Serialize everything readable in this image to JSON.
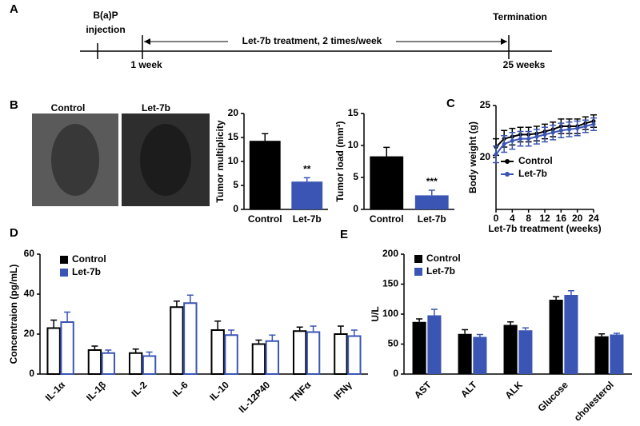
{
  "panel_labels": [
    "A",
    "B",
    "C",
    "D",
    "E"
  ],
  "timeline": {
    "injection": [
      "B(a)P",
      "injection"
    ],
    "treatment": "Let-7b treatment, 2 times/week",
    "termination": "Termination",
    "start": "1 week",
    "end": "25 weeks"
  },
  "images": {
    "labels": [
      "Control",
      "Let-7b"
    ]
  },
  "chart_data": [
    {
      "type": "bar",
      "ylabel": "Tumor multiplicity",
      "categories": [
        "Control",
        "Let-7b"
      ],
      "values": [
        14.3,
        5.8
      ],
      "errors": [
        1.5,
        0.8
      ],
      "colors": [
        "#000000",
        "#3a55b4"
      ],
      "annotation": "**",
      "ylim": [
        0,
        20
      ],
      "yticks": [
        0,
        5,
        10,
        15,
        20
      ]
    },
    {
      "type": "bar",
      "ylabel": "Tumor load (mm³)",
      "categories": [
        "Control",
        "Let-7b"
      ],
      "values": [
        8.3,
        2.2
      ],
      "errors": [
        1.4,
        0.8
      ],
      "colors": [
        "#000000",
        "#3a55b4"
      ],
      "annotation": "***",
      "ylim": [
        0,
        15
      ],
      "yticks": [
        0,
        5,
        10,
        15
      ]
    },
    {
      "type": "line",
      "ylabel": "Body weight (g)",
      "xlabel": "Let-7b treatment (weeks)",
      "x": [
        0,
        2,
        4,
        6,
        8,
        10,
        12,
        14,
        16,
        18,
        20,
        22,
        24
      ],
      "series": [
        {
          "name": "Control",
          "color": "#000000",
          "values": [
            21.0,
            21.8,
            22.0,
            22.2,
            22.2,
            22.3,
            22.5,
            22.7,
            23.0,
            23.0,
            23.0,
            23.3,
            23.5
          ],
          "errors": [
            0.8,
            0.8,
            0.8,
            0.7,
            0.7,
            0.7,
            0.7,
            0.7,
            0.7,
            0.7,
            0.7,
            0.6,
            0.6
          ]
        },
        {
          "name": "Let-7b",
          "color": "#3a55b4",
          "values": [
            20.3,
            21.3,
            21.6,
            21.8,
            21.8,
            22.0,
            22.2,
            22.4,
            22.6,
            22.7,
            22.8,
            23.0,
            23.2
          ],
          "errors": [
            0.8,
            0.8,
            0.8,
            0.7,
            0.7,
            0.7,
            0.7,
            0.7,
            0.7,
            0.7,
            0.7,
            0.6,
            0.6
          ]
        }
      ],
      "xlim": [
        0,
        24
      ],
      "xticks": [
        0,
        4,
        8,
        12,
        16,
        20,
        24
      ],
      "ylim": [
        15,
        25
      ],
      "yticks": [
        20,
        25
      ]
    },
    {
      "type": "grouped_bar",
      "bar_style": "outline",
      "ylabel": "Concentraion (pg/mL)",
      "categories": [
        "IL-1α",
        "IL-1β",
        "IL-2",
        "IL-6",
        "IL-10",
        "IL-12P40",
        "TNFα",
        "IFNγ"
      ],
      "series": [
        {
          "name": "Control",
          "color": "#000000",
          "values": [
            23,
            12,
            10.5,
            33.5,
            22,
            15,
            21.5,
            20
          ],
          "errors": [
            4,
            2,
            2,
            3,
            4.5,
            2,
            2,
            4
          ]
        },
        {
          "name": "Let-7b",
          "color": "#3a55b4",
          "values": [
            26,
            10.5,
            9,
            35.5,
            19.5,
            16.5,
            21,
            19
          ],
          "errors": [
            5,
            1.5,
            2,
            4,
            2.5,
            3,
            3,
            3
          ]
        }
      ],
      "ylim": [
        0,
        60
      ],
      "yticks": [
        0,
        20,
        40,
        60
      ]
    },
    {
      "type": "grouped_bar",
      "bar_style": "filled",
      "ylabel": "U/L",
      "categories": [
        "AST",
        "ALT",
        "ALK",
        "Glucose",
        "cholesterol"
      ],
      "series": [
        {
          "name": "Control",
          "color": "#000000",
          "values": [
            87,
            67,
            82,
            124,
            63
          ],
          "errors": [
            5,
            7,
            5,
            5,
            4
          ]
        },
        {
          "name": "Let-7b",
          "color": "#3a55b4",
          "values": [
            98,
            62,
            73,
            132,
            66
          ],
          "errors": [
            10,
            4,
            4,
            7,
            2
          ]
        }
      ],
      "ylim": [
        0,
        200
      ],
      "yticks": [
        0,
        50,
        100,
        150,
        200
      ]
    }
  ]
}
